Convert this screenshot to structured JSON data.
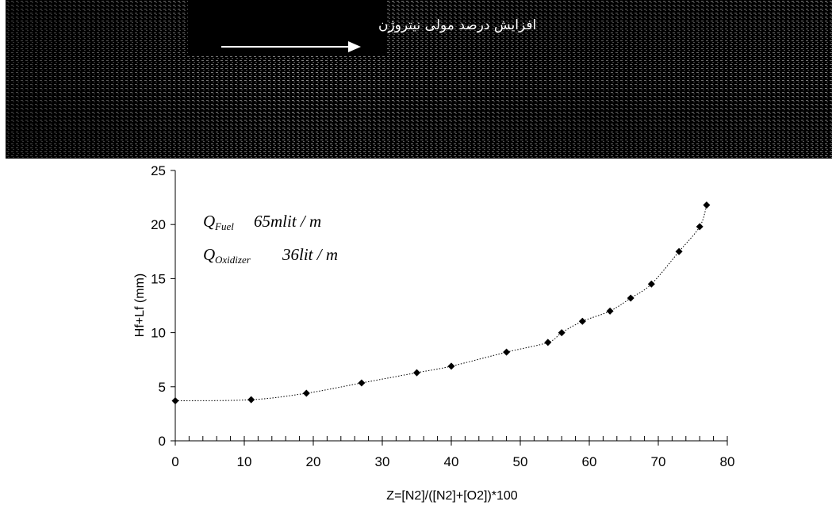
{
  "strip": {
    "caption": "افزایش درصد مولی نیتروژن"
  },
  "chart_data": {
    "type": "line",
    "title": "",
    "xlabel": "Z=[N2]/([N2]+[O2])*100",
    "ylabel": "Hf+Lf (mm)",
    "xlim": [
      0,
      80
    ],
    "ylim": [
      0,
      25
    ],
    "xticks": [
      0,
      10,
      20,
      30,
      40,
      50,
      60,
      70,
      80
    ],
    "yticks": [
      0,
      5,
      10,
      15,
      20,
      25
    ],
    "grid": false,
    "series": [
      {
        "x": [
          0,
          11,
          19,
          27,
          35,
          40,
          48,
          54,
          56,
          59,
          63,
          66,
          69,
          73,
          76,
          77
        ],
        "y": [
          3.7,
          3.8,
          4.4,
          5.35,
          6.3,
          6.9,
          8.2,
          9.1,
          10.0,
          11.05,
          12.0,
          13.2,
          14.5,
          17.5,
          19.8,
          21.8
        ]
      }
    ],
    "annotations": [
      {
        "label": "Q",
        "sub": "Fuel",
        "value": "65mlit / m"
      },
      {
        "label": "Q",
        "sub": "Oxidizer",
        "value": "36lit / m"
      }
    ]
  }
}
